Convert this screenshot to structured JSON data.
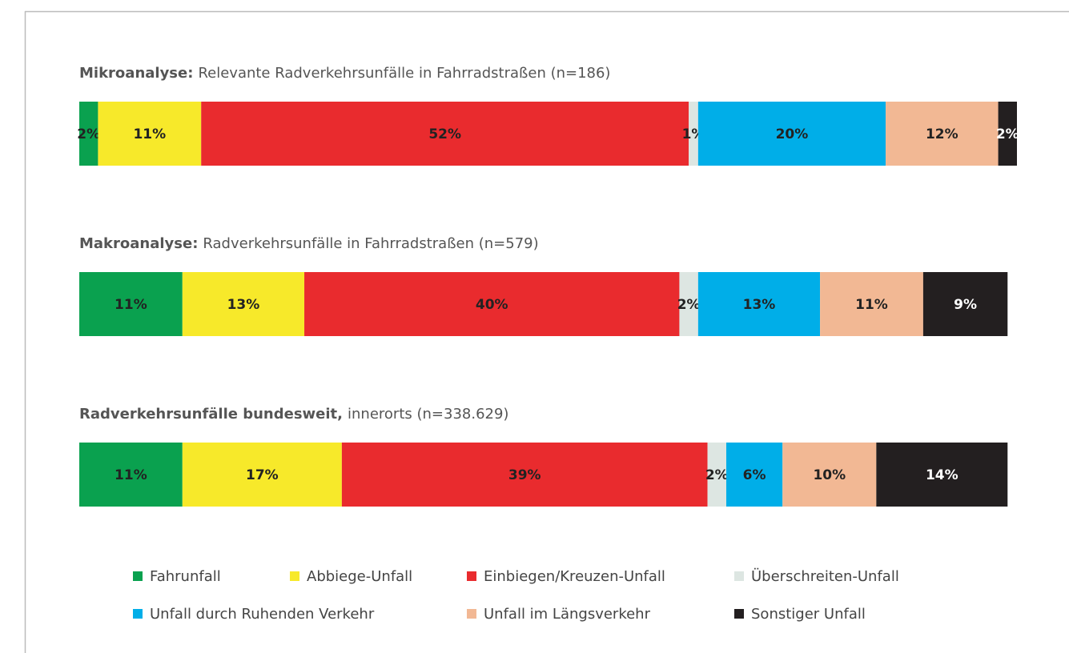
{
  "chart_data": {
    "type": "stacked_bar_horizontal",
    "categories": [
      {
        "bold": "Mikroanalyse:",
        "text": "Relevante Radverkehrsunfälle in Fahrradstraßen (n=186)"
      },
      {
        "bold": "Makroanalyse:",
        "text": "Radverkehrsunfälle in Fahrradstraßen (n=579)"
      },
      {
        "bold": "Radverkehrsunfälle bundesweit,",
        "text": "innerorts (n=338.629)"
      }
    ],
    "xlim": [
      0,
      100
    ],
    "series": [
      {
        "name": "Fahrunfall",
        "color": "#0aa14f",
        "values": [
          2,
          11,
          11
        ],
        "value_labels": [
          "2%",
          "11%",
          "11%"
        ]
      },
      {
        "name": "Abbiege-Unfall",
        "color": "#f7e92a",
        "values": [
          11,
          13,
          17
        ],
        "value_labels": [
          "11%",
          "13%",
          "17%"
        ]
      },
      {
        "name": "Einbiegen/Kreuzen-Unfall",
        "color": "#e92b2e",
        "values": [
          52,
          40,
          39
        ],
        "value_labels": [
          "52%",
          "40%",
          "39%"
        ]
      },
      {
        "name": "Überschreiten-Unfall",
        "color": "#dde6e2",
        "values": [
          1,
          2,
          2
        ],
        "value_labels": [
          "1%",
          "2%",
          "2%"
        ]
      },
      {
        "name": "Unfall durch Ruhenden Verkehr",
        "color": "#00aee8",
        "values": [
          20,
          13,
          6
        ],
        "value_labels": [
          "20%",
          "13%",
          "6%"
        ]
      },
      {
        "name": "Unfall im Längsverkehr",
        "color": "#f2b894",
        "values": [
          12,
          11,
          10
        ],
        "value_labels": [
          "12%",
          "11%",
          "10%"
        ]
      },
      {
        "name": "Sonstiger Unfall",
        "color": "#231f20",
        "values": [
          2,
          9,
          14
        ],
        "value_labels": [
          "2%",
          "9%",
          "14%"
        ]
      }
    ],
    "legend": "bottom"
  }
}
